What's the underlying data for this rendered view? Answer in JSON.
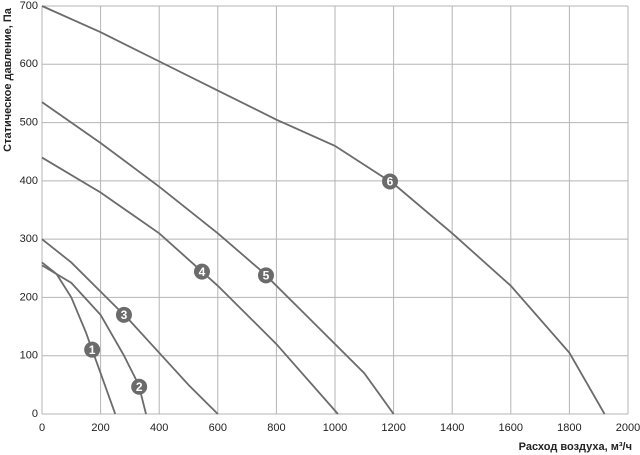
{
  "chart_data": {
    "type": "line",
    "y_label": "Статическое давление, Па",
    "x_label": "Расход воздуха, м³/ч",
    "xlim": [
      0,
      2000
    ],
    "xticks": [
      0,
      200,
      400,
      600,
      800,
      1000,
      1200,
      1400,
      1600,
      1800,
      2000
    ],
    "ylim": [
      0,
      700
    ],
    "yticks": [
      0,
      100,
      200,
      300,
      400,
      500,
      600,
      700
    ],
    "grid": true,
    "line_color": "#6b6b6b",
    "badge_color": "#6b6b6b",
    "series": [
      {
        "name": "1",
        "x": [
          0,
          50,
          100,
          150,
          200,
          250
        ],
        "values": [
          260,
          240,
          200,
          140,
          70,
          0
        ]
      },
      {
        "name": "2",
        "x": [
          0,
          100,
          200,
          280,
          330,
          355
        ],
        "values": [
          255,
          225,
          170,
          100,
          50,
          0
        ]
      },
      {
        "name": "3",
        "x": [
          0,
          100,
          200,
          300,
          400,
          500,
          600
        ],
        "values": [
          300,
          260,
          210,
          160,
          105,
          50,
          0
        ]
      },
      {
        "name": "4",
        "x": [
          0,
          200,
          400,
          500,
          600,
          800,
          1010
        ],
        "values": [
          440,
          380,
          310,
          265,
          220,
          120,
          0
        ]
      },
      {
        "name": "5",
        "x": [
          0,
          200,
          400,
          600,
          750,
          900,
          1100,
          1200
        ],
        "values": [
          535,
          465,
          390,
          310,
          245,
          170,
          70,
          0
        ]
      },
      {
        "name": "6",
        "x": [
          0,
          200,
          400,
          600,
          800,
          1000,
          1200,
          1400,
          1600,
          1800,
          1920
        ],
        "values": [
          700,
          655,
          605,
          555,
          505,
          460,
          395,
          310,
          220,
          105,
          0
        ]
      }
    ]
  }
}
